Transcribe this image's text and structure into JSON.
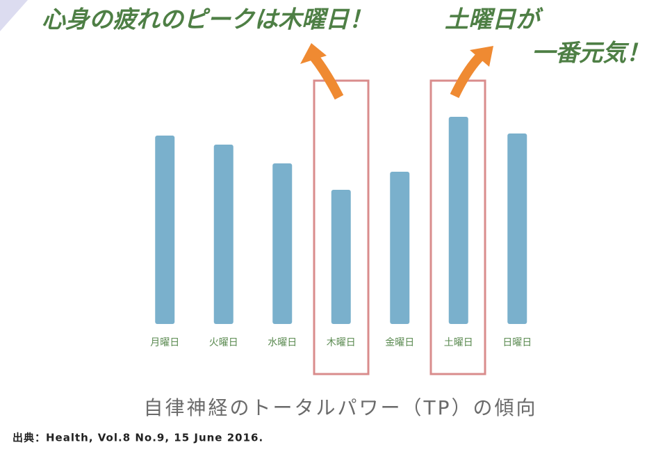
{
  "chart_data": {
    "type": "bar",
    "title": "自律神経のトータルパワー（TP）の傾向",
    "annotations": [
      "心身の疲れのピークは木曜日！",
      "土曜日が",
      "一番元気！"
    ],
    "source": "出典：Health, Vol.8 No.9, 15 June 2016.",
    "categories": [
      "月曜日",
      "火曜日",
      "水曜日",
      "木曜日",
      "金曜日",
      "土曜日",
      "日曜日"
    ],
    "values": [
      271,
      258,
      231,
      193,
      219,
      298,
      274
    ],
    "color": "#7ab0cc"
  }
}
